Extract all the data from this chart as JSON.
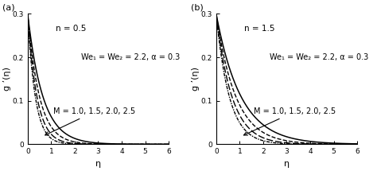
{
  "title_a": "(a)",
  "title_b": "(b)",
  "xlabel": "η",
  "ylabel_a": "g ’(η)",
  "ylabel_b": "g ’(η)",
  "xlim": [
    0,
    6
  ],
  "ylim": [
    0,
    0.3
  ],
  "yticks": [
    0.0,
    0.1,
    0.2,
    0.3
  ],
  "ytick_labels": [
    "0",
    "0.1",
    "0.2",
    "0.3"
  ],
  "xticks": [
    0,
    1,
    2,
    3,
    4,
    5,
    6
  ],
  "n_a": 0.5,
  "n_b": 1.5,
  "annotation_params": "We₁ = We₂ = 2.2, α = 0.3",
  "annotation_M": "M = 1.0, 1.5, 2.0, 2.5",
  "M_values": [
    1.0,
    1.5,
    2.0,
    2.5
  ],
  "line_color": "#000000",
  "background_color": "#ffffff",
  "fig_width": 4.74,
  "fig_height": 2.15,
  "dpi": 100,
  "decay_rates_a": [
    1.55,
    2.0,
    2.55,
    3.1
  ],
  "decay_rates_b": [
    0.95,
    1.2,
    1.5,
    1.8
  ],
  "initial_value": 0.3
}
